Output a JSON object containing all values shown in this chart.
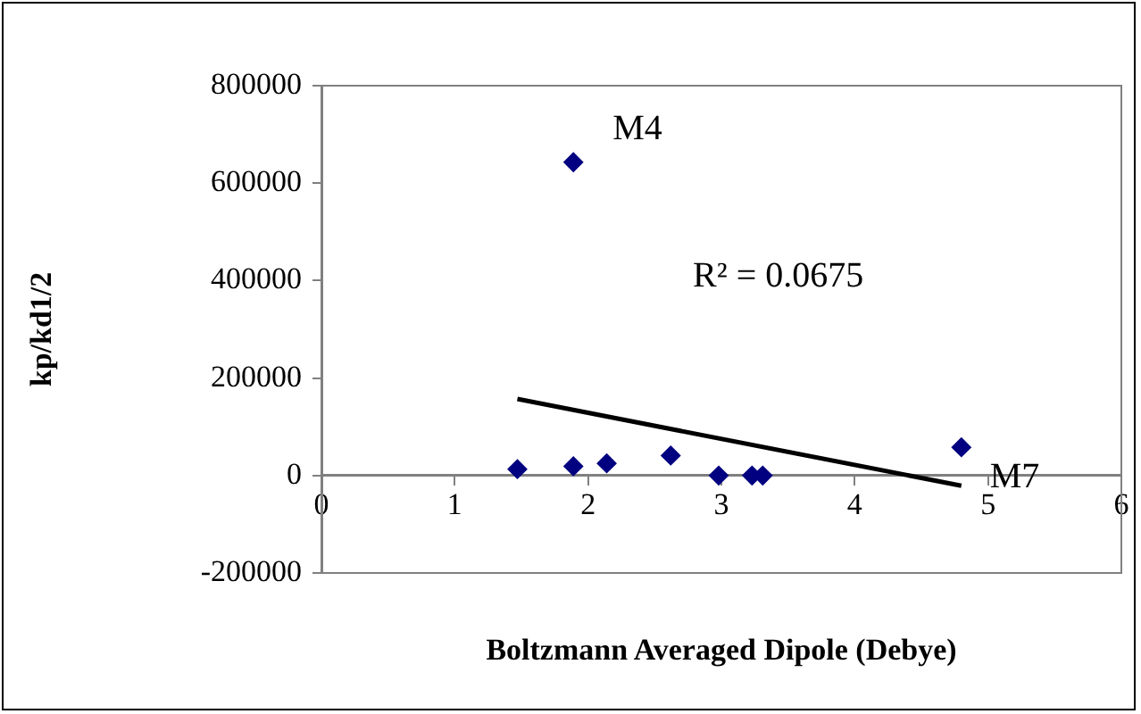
{
  "chart_data": {
    "type": "scatter",
    "xlabel": "Boltzmann Averaged Dipole (Debye)",
    "ylabel": "kp/kd1/2",
    "xlim": [
      0,
      6
    ],
    "xticks": [
      0,
      1,
      2,
      3,
      4,
      5,
      6
    ],
    "ylim": [
      -200000,
      800000
    ],
    "yticks": [
      -200000,
      0,
      200000,
      400000,
      600000,
      800000
    ],
    "grid": false,
    "marker": "diamond",
    "series": [
      {
        "color": "#000080",
        "x": [
          1.47,
          1.89,
          1.89,
          2.14,
          2.62,
          2.98,
          3.23,
          3.31,
          4.8
        ],
        "values": [
          13000,
          643000,
          19000,
          25000,
          41000,
          0,
          0,
          0,
          58000
        ]
      },
      {
        "type": "line",
        "color": "#000000",
        "marker": "none",
        "x": [
          1.47,
          4.8
        ],
        "values": [
          157000,
          -21000
        ]
      }
    ],
    "annotations": [
      {
        "text": "M4",
        "x": 1.89,
        "y": 643000
      },
      {
        "text": "M7",
        "x": 4.8,
        "y": 58000
      },
      "R² = 0.0675"
    ]
  }
}
